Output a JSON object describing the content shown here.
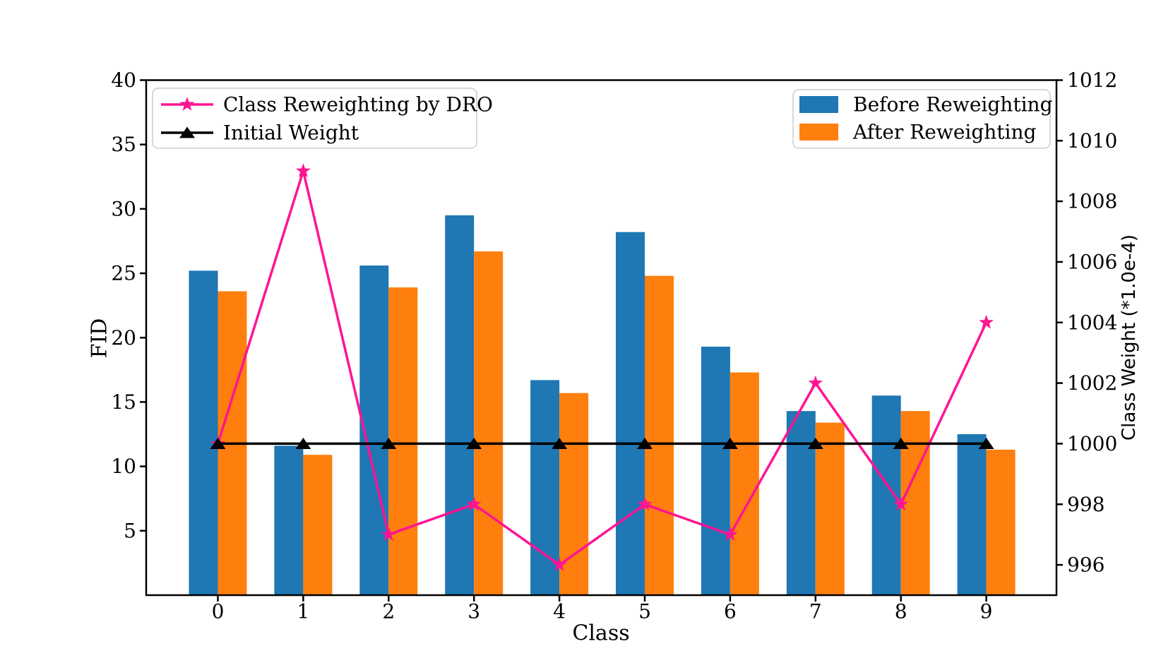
{
  "figure": {
    "background": "#ffffff",
    "frame_color": "#000000"
  },
  "axes": {
    "x_label": "Class",
    "y_left_label": "FID",
    "y_right_label": "Class Weight (*1.0e-4)"
  },
  "chart_data": {
    "type": "bar+line dual-axis",
    "categories": [
      "0",
      "1",
      "2",
      "3",
      "4",
      "5",
      "6",
      "7",
      "8",
      "9"
    ],
    "xlabel": "Class",
    "ylabel_left": "FID",
    "ylabel_right": "Class Weight (*1.0e-4)",
    "ylim_left": [
      0,
      40
    ],
    "ylim_right": [
      995,
      1012
    ],
    "yticks_left": [
      5,
      10,
      15,
      20,
      25,
      30,
      35,
      40
    ],
    "yticks_right": [
      996,
      998,
      1000,
      1002,
      1004,
      1006,
      1008,
      1010,
      1012
    ],
    "grid": false,
    "series": [
      {
        "name": "Before Reweighting",
        "type": "bar",
        "axis": "left",
        "color": "#1f77b4",
        "values": [
          25.2,
          11.6,
          25.6,
          29.5,
          16.7,
          28.2,
          19.3,
          14.3,
          15.5,
          12.5
        ]
      },
      {
        "name": "After Reweighting",
        "type": "bar",
        "axis": "left",
        "color": "#ff7f0e",
        "values": [
          23.6,
          10.9,
          23.9,
          26.7,
          15.7,
          24.8,
          17.3,
          13.4,
          14.3,
          11.3
        ]
      },
      {
        "name": "Class Reweighting by DRO",
        "type": "line",
        "axis": "right",
        "color": "#ff1493",
        "marker": "star",
        "values": [
          1000,
          1009,
          997,
          998,
          996,
          998,
          997,
          1002,
          998,
          1004
        ]
      },
      {
        "name": "Initial Weight",
        "type": "line",
        "axis": "right",
        "color": "#000000",
        "marker": "triangle",
        "values": [
          1000,
          1000,
          1000,
          1000,
          1000,
          1000,
          1000,
          1000,
          1000,
          1000
        ]
      }
    ],
    "legend_left": {
      "entries": [
        "Class Reweighting by DRO",
        "Initial Weight"
      ],
      "position": "upper left"
    },
    "legend_right": {
      "entries": [
        "Before Reweighting",
        "After Reweighting"
      ],
      "position": "upper right"
    }
  }
}
